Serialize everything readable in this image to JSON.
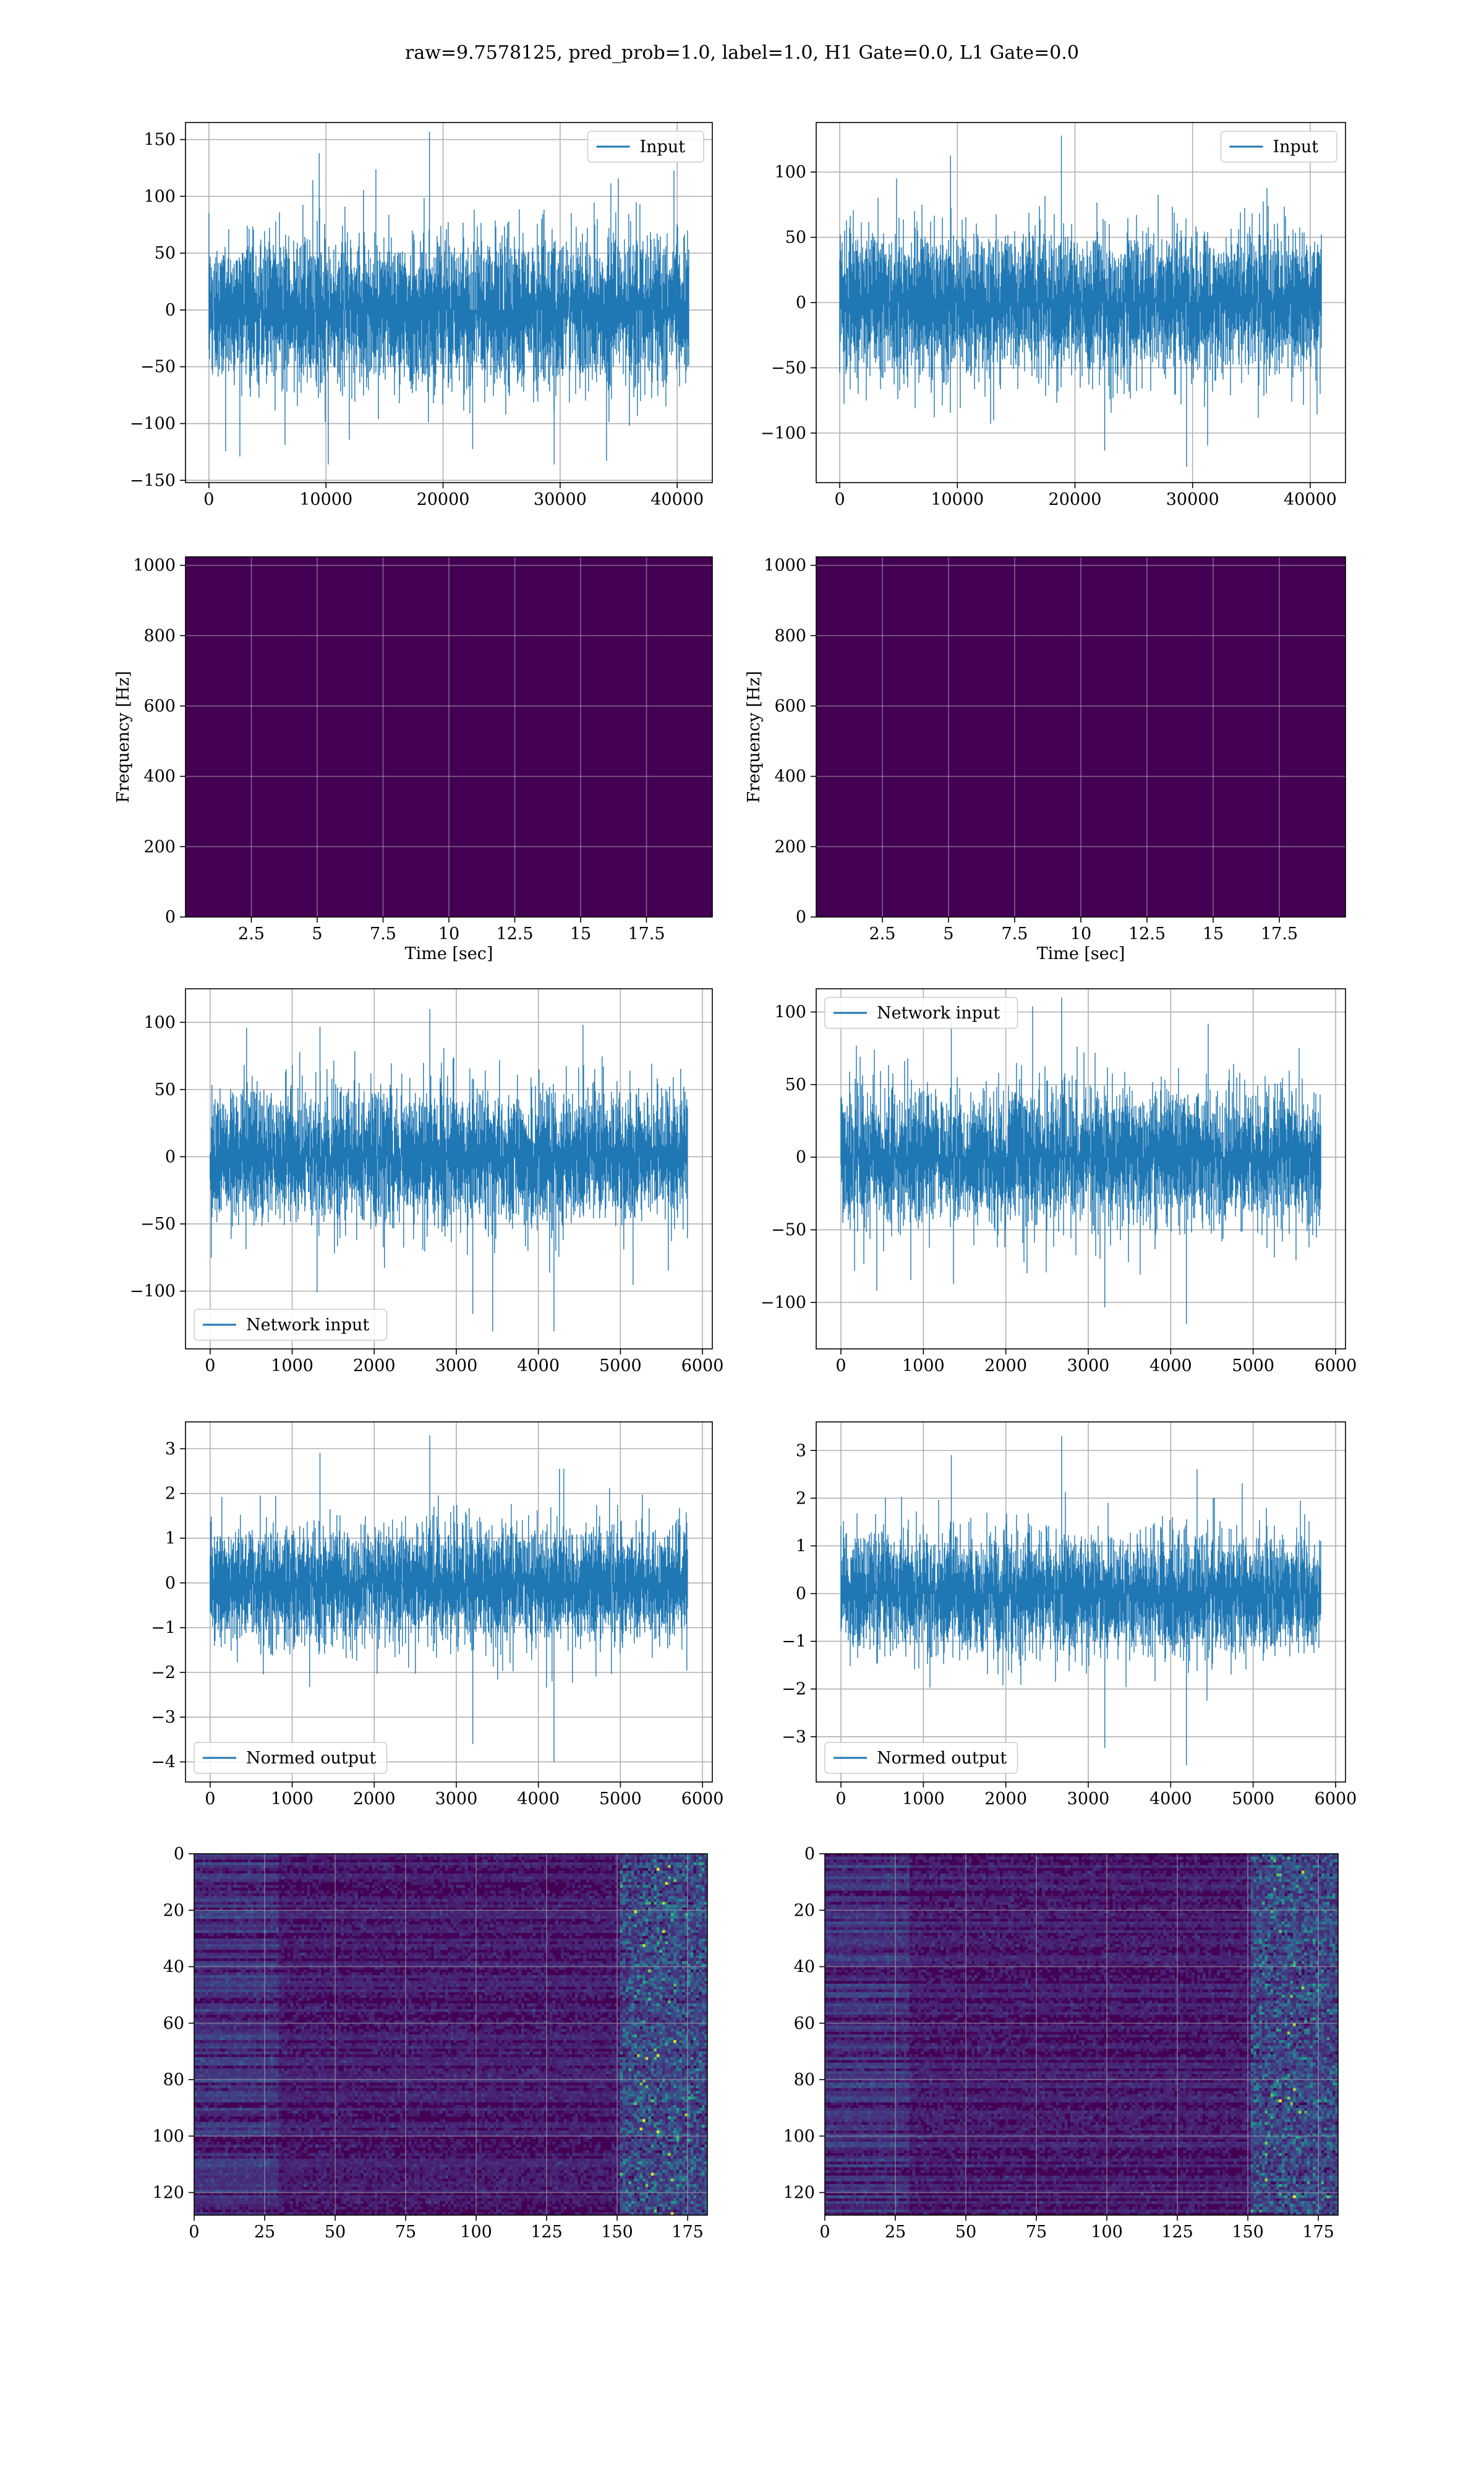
{
  "title": "raw=9.7578125, pred_prob=1.0, label=1.0, H1 Gate=0.0, L1 Gate=0.0",
  "colors": {
    "line": "#1f77b4",
    "grid": "#b0b0b0",
    "viridis_dark": "#440154",
    "viridis_teal": "#21918c",
    "viridis_yellow": "#fde725"
  },
  "chart_data": [
    {
      "id": "input-h1",
      "type": "line",
      "legend": "Input",
      "legend_loc": "upper right",
      "xlim": [
        -2000,
        43000
      ],
      "ylim": [
        -152,
        165
      ],
      "xticks": [
        0,
        10000,
        20000,
        30000,
        40000
      ],
      "yticks": [
        -150,
        -100,
        -50,
        0,
        50,
        100,
        150
      ],
      "grid": true,
      "series": [
        {
          "n_samples": 40960,
          "x_range": [
            0,
            40960
          ],
          "typical_range": [
            -80,
            80
          ],
          "min": -136,
          "max": 157
        }
      ]
    },
    {
      "id": "input-l1",
      "type": "line",
      "legend": "Input",
      "legend_loc": "upper right",
      "xlim": [
        -2000,
        43000
      ],
      "ylim": [
        -138,
        138
      ],
      "xticks": [
        0,
        10000,
        20000,
        30000,
        40000
      ],
      "yticks": [
        -100,
        -50,
        0,
        50,
        100
      ],
      "grid": true,
      "series": [
        {
          "n_samples": 40960,
          "x_range": [
            0,
            40960
          ],
          "typical_range": [
            -65,
            65
          ],
          "min": -126,
          "max": 128
        }
      ]
    },
    {
      "id": "spec-h1",
      "type": "heatmap",
      "colormap": "viridis",
      "xlabel": "Time [sec]",
      "ylabel": "Frequency [Hz]",
      "xlim": [
        0,
        20
      ],
      "ylim": [
        0,
        1024
      ],
      "xticks": [
        2.5,
        5.0,
        7.5,
        10.0,
        12.5,
        15.0,
        17.5
      ],
      "yticks": [
        0,
        200,
        400,
        600,
        800,
        1000
      ],
      "grid": true
    },
    {
      "id": "spec-l1",
      "type": "heatmap",
      "colormap": "viridis",
      "xlabel": "Time [sec]",
      "ylabel": "Frequency [Hz]",
      "xlim": [
        0,
        20
      ],
      "ylim": [
        0,
        1024
      ],
      "xticks": [
        2.5,
        5.0,
        7.5,
        10.0,
        12.5,
        15.0,
        17.5
      ],
      "yticks": [
        0,
        200,
        400,
        600,
        800,
        1000
      ],
      "grid": true
    },
    {
      "id": "net-h1",
      "type": "line",
      "legend": "Network input",
      "legend_loc": "lower left",
      "xlim": [
        -300,
        6120
      ],
      "ylim": [
        -143,
        125
      ],
      "xticks": [
        0,
        1000,
        2000,
        3000,
        4000,
        5000,
        6000
      ],
      "yticks": [
        -100,
        -50,
        0,
        50,
        100
      ],
      "grid": true,
      "series": [
        {
          "n_samples": 5820,
          "x_range": [
            0,
            5820
          ],
          "typical_range": [
            -60,
            60
          ],
          "min": -130,
          "max": 110
        }
      ]
    },
    {
      "id": "net-l1",
      "type": "line",
      "legend": "Network input",
      "legend_loc": "upper left",
      "xlim": [
        -300,
        6120
      ],
      "ylim": [
        -132,
        116
      ],
      "xticks": [
        0,
        1000,
        2000,
        3000,
        4000,
        5000,
        6000
      ],
      "yticks": [
        -100,
        -50,
        0,
        50,
        100
      ],
      "grid": true,
      "series": [
        {
          "n_samples": 5820,
          "x_range": [
            0,
            5820
          ],
          "typical_range": [
            -55,
            55
          ],
          "min": -115,
          "max": 110
        }
      ]
    },
    {
      "id": "norm-h1",
      "type": "line",
      "legend": "Normed output",
      "legend_loc": "lower left",
      "xlim": [
        -300,
        6120
      ],
      "ylim": [
        -4.45,
        3.6
      ],
      "xticks": [
        0,
        1000,
        2000,
        3000,
        4000,
        5000,
        6000
      ],
      "yticks": [
        -4,
        -3,
        -2,
        -1,
        0,
        1,
        2,
        3
      ],
      "grid": true,
      "series": [
        {
          "n_samples": 5820,
          "x_range": [
            0,
            5820
          ],
          "typical_range": [
            -1.6,
            1.6
          ],
          "min": -4.0,
          "max": 3.3
        }
      ]
    },
    {
      "id": "norm-l1",
      "type": "line",
      "legend": "Normed output",
      "legend_loc": "lower left",
      "xlim": [
        -300,
        6120
      ],
      "ylim": [
        -3.95,
        3.6
      ],
      "xticks": [
        0,
        1000,
        2000,
        3000,
        4000,
        5000,
        6000
      ],
      "yticks": [
        -3,
        -2,
        -1,
        0,
        1,
        2,
        3
      ],
      "grid": true,
      "series": [
        {
          "n_samples": 5820,
          "x_range": [
            0,
            5820
          ],
          "typical_range": [
            -1.5,
            1.5
          ],
          "min": -3.6,
          "max": 3.3
        }
      ]
    },
    {
      "id": "feat-h1",
      "type": "heatmap",
      "colormap": "viridis",
      "xlim": [
        0,
        182
      ],
      "ylim": [
        128,
        0
      ],
      "xticks": [
        0,
        25,
        50,
        75,
        100,
        125,
        150,
        175
      ],
      "yticks": [
        0,
        20,
        40,
        60,
        80,
        100,
        120
      ],
      "grid": true,
      "shape": [
        128,
        182
      ]
    },
    {
      "id": "feat-l1",
      "type": "heatmap",
      "colormap": "viridis",
      "xlim": [
        0,
        182
      ],
      "ylim": [
        128,
        0
      ],
      "xticks": [
        0,
        25,
        50,
        75,
        100,
        125,
        150,
        175
      ],
      "yticks": [
        0,
        20,
        40,
        60,
        80,
        100,
        120
      ],
      "grid": true,
      "shape": [
        128,
        182
      ]
    }
  ]
}
